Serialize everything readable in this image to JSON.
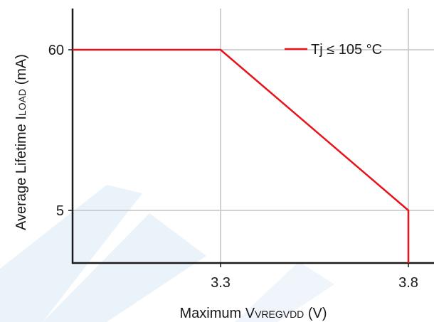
{
  "chart_data": {
    "type": "line",
    "title": "",
    "xlabel": {
      "main": "Maximum V",
      "sub": "VREGVDD",
      "tail": " (V)"
    },
    "ylabel": {
      "main": "Average Lifetime I",
      "sub": "LOAD",
      "tail": " (mA)"
    },
    "x_ticks": [
      {
        "value": 3.3,
        "label": "3.3"
      },
      {
        "value": 3.8,
        "label": "3.8"
      }
    ],
    "y_ticks": [
      {
        "value": 5,
        "label": "5"
      },
      {
        "value": 60,
        "label": "60"
      }
    ],
    "grid": true,
    "legend_position": "top-right",
    "series": [
      {
        "name": "Tj ≤ 105 °C",
        "color": "#e8121a",
        "points": [
          {
            "x": 2.8,
            "y": 60
          },
          {
            "x": 3.3,
            "y": 60
          },
          {
            "x": 3.8,
            "y": 5
          },
          {
            "x": 3.8,
            "y": 0
          }
        ]
      }
    ],
    "watermark_color": "#dbe9f6"
  }
}
